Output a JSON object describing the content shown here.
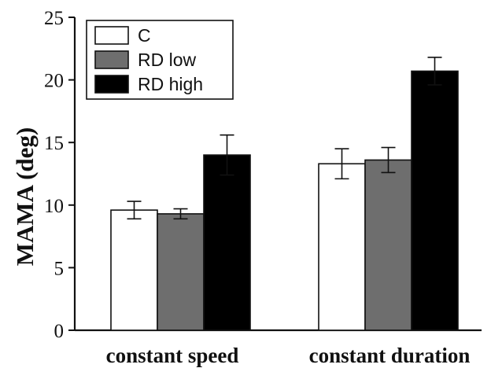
{
  "chart_data": {
    "type": "bar",
    "title": "",
    "xlabel": "",
    "ylabel": "MAMA (deg)",
    "ylim": [
      0,
      25
    ],
    "yticks": [
      0,
      5,
      10,
      15,
      20,
      25
    ],
    "grid": false,
    "legend_position": "top-left",
    "categories": [
      "constant speed",
      "constant duration"
    ],
    "series": [
      {
        "name": "C",
        "color": "#ffffff",
        "values": [
          9.6,
          13.3
        ],
        "errors": [
          0.7,
          1.2
        ]
      },
      {
        "name": "RD low",
        "color": "#6e6e6e",
        "values": [
          9.3,
          13.6
        ],
        "errors": [
          0.4,
          1.0
        ]
      },
      {
        "name": "RD high",
        "color": "#000000",
        "values": [
          14.0,
          20.7
        ],
        "errors": [
          1.6,
          1.1
        ]
      }
    ]
  }
}
